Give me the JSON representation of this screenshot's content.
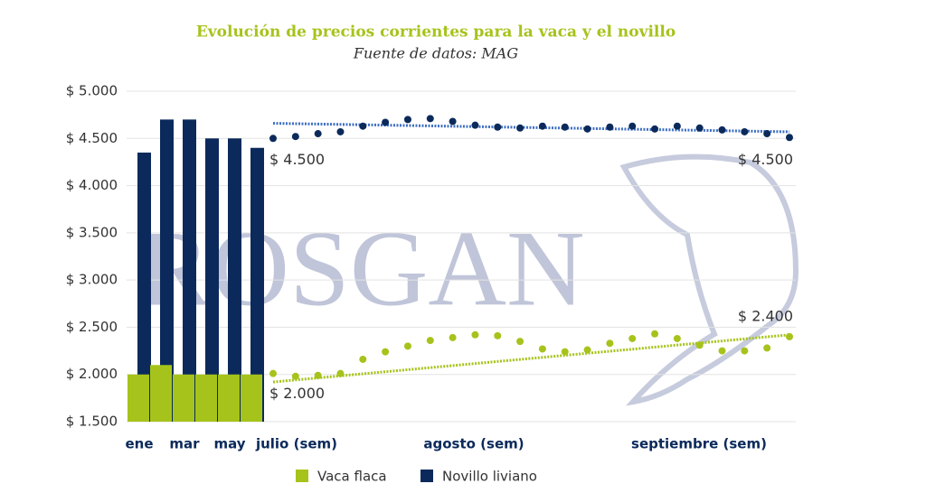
{
  "chart_data": {
    "type": "bar-dots",
    "title": "Evolución de precios corrientes para la vaca y el novillo",
    "subtitle": "Fuente de datos: MAG",
    "watermark": "ROSGAN",
    "categories": [
      "ene",
      null,
      "mar",
      null,
      "may",
      null
    ],
    "period_labels": [
      "julio (sem)",
      "agosto (sem)",
      "septiembre (sem)"
    ],
    "ylim": [
      1500,
      5000
    ],
    "yticks": [
      {
        "value": 1500,
        "label": "$ 1.500"
      },
      {
        "value": 2000,
        "label": "$ 2.000"
      },
      {
        "value": 2500,
        "label": "$ 2.500"
      },
      {
        "value": 3000,
        "label": "$ 3.000"
      },
      {
        "value": 3500,
        "label": "$ 3.500"
      },
      {
        "value": 4000,
        "label": "$ 4.000"
      },
      {
        "value": 4500,
        "label": "$ 4.500"
      },
      {
        "value": 5000,
        "label": "$ 5.000"
      }
    ],
    "grid": true,
    "series": [
      {
        "name": "Novillo liviano",
        "color": "#0b2a5b",
        "trend_color": "#3d6fc2",
        "values": [
          4350,
          4700,
          4700,
          4500,
          4500,
          4400
        ],
        "weekly": [
          4500,
          4520,
          4550,
          4570,
          4630,
          4670,
          4700,
          4710,
          4680,
          4640,
          4620,
          4610,
          4630,
          4620,
          4600,
          4620,
          4630,
          4600,
          4630,
          4610,
          4590,
          4570,
          4550,
          4510
        ],
        "trend": [
          4660,
          4570
        ]
      },
      {
        "name": "Vaca flaca",
        "color": "#a6c31c",
        "trend_color": "#a6c31c",
        "values": [
          2000,
          2100,
          2000,
          2000,
          2000,
          2000
        ],
        "weekly": [
          2010,
          1980,
          1990,
          2010,
          2160,
          2240,
          2300,
          2360,
          2390,
          2420,
          2410,
          2350,
          2270,
          2240,
          2260,
          2330,
          2380,
          2430,
          2380,
          2310,
          2250,
          2250,
          2280,
          2400
        ],
        "trend": [
          1920,
          2420
        ]
      }
    ],
    "annotations": [
      {
        "text": "$ 4.500",
        "value": 4500
      },
      {
        "text": "$ 4.500",
        "value": 4500
      },
      {
        "text": "$ 2.000",
        "value": 2000
      },
      {
        "text": "$ 2.400",
        "value": 2400
      }
    ]
  }
}
